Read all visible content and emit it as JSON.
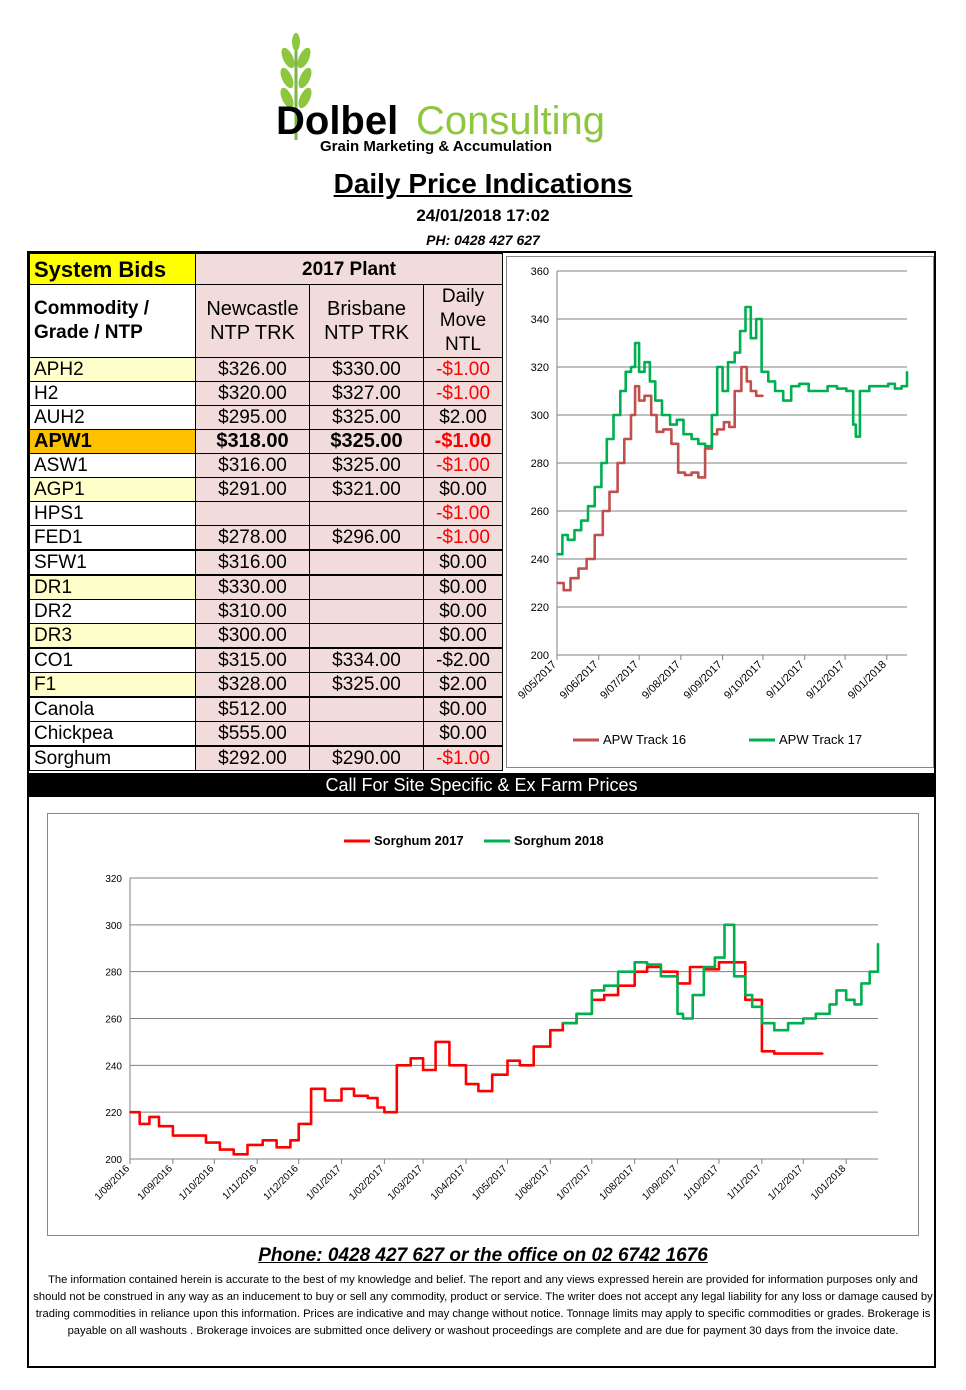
{
  "logo": {
    "brand_left": "Dolbel",
    "brand_right": "Consulting",
    "tagline": "Grain Marketing & Accumulation"
  },
  "header": {
    "title": "Daily Price Indications",
    "datetime": "24/01/2018 17:02",
    "phone": "PH: 0428 427 627"
  },
  "table": {
    "title": "System Bids",
    "plant": "2017 Plant",
    "col_commodity": "Commodity / Grade / NTP",
    "col_newcastle": "Newcastle NTP TRK",
    "col_brisbane": "Brisbane NTP TRK",
    "col_move": "Daily Move NTL",
    "rows": [
      {
        "name": "APH2",
        "newcastle": "$326.00",
        "brisbane": "$330.00",
        "move": "-$1.00"
      },
      {
        "name": "H2",
        "newcastle": "$320.00",
        "brisbane": "$327.00",
        "move": "-$1.00"
      },
      {
        "name": "AUH2",
        "newcastle": "$295.00",
        "brisbane": "$325.00",
        "move": "$2.00"
      },
      {
        "name": "APW1",
        "newcastle": "$318.00",
        "brisbane": "$325.00",
        "move": "-$1.00"
      },
      {
        "name": "ASW1",
        "newcastle": "$316.00",
        "brisbane": "$325.00",
        "move": "-$1.00"
      },
      {
        "name": "AGP1",
        "newcastle": "$291.00",
        "brisbane": "$321.00",
        "move": "$0.00"
      },
      {
        "name": "HPS1",
        "newcastle": "",
        "brisbane": "",
        "move": "-$1.00"
      },
      {
        "name": "FED1",
        "newcastle": "$278.00",
        "brisbane": "$296.00",
        "move": "-$1.00"
      },
      {
        "name": "SFW1",
        "newcastle": "$316.00",
        "brisbane": "",
        "move": "$0.00"
      },
      {
        "name": "DR1",
        "newcastle": "$330.00",
        "brisbane": "",
        "move": "$0.00"
      },
      {
        "name": "DR2",
        "newcastle": "$310.00",
        "brisbane": "",
        "move": "$0.00"
      },
      {
        "name": "DR3",
        "newcastle": "$300.00",
        "brisbane": "",
        "move": "$0.00"
      },
      {
        "name": "CO1",
        "newcastle": "$315.00",
        "brisbane": "$334.00",
        "move": "-$2.00"
      },
      {
        "name": "F1",
        "newcastle": "$328.00",
        "brisbane": "$325.00",
        "move": "$2.00"
      },
      {
        "name": "Canola",
        "newcastle": "$512.00",
        "brisbane": "",
        "move": "$0.00"
      },
      {
        "name": "Chickpea",
        "newcastle": "$555.00",
        "brisbane": "",
        "move": "$0.00"
      },
      {
        "name": "Sorghum",
        "newcastle": "$292.00",
        "brisbane": "$290.00",
        "move": "-$1.00"
      }
    ]
  },
  "banner": "Call For Site Specific & Ex Farm Prices",
  "footer": {
    "phone": "Phone: 0428 427 627 or the office on 02 6742 1676",
    "disclaimer": "The information contained herein is accurate to the best of my knowledge and belief.  The report and any views expressed herein are provided for information purposes only and should not be construed in any way as an inducement to buy or sell any commodity, product or service. The writer does not accept any legal liability for any loss or damage caused by trading commodities in reliance upon this information. Prices are indicative and may change without notice. Tonnage limits may apply to specific commodities or grades.  Brokerage is payable on all washouts . Brokerage invoices are submitted once delivery or washout proceedings are complete and are due for payment 30 days from the invoice date."
  },
  "colors": {
    "red_line": "#c0504d",
    "green_line": "#00b050",
    "sorghum_red": "#ff0000",
    "apw_highlight": "#ffc000",
    "pink_cell": "#f2dcdb",
    "yellow_cell": "#ffffcc"
  },
  "chart_data": [
    {
      "type": "line",
      "title": "",
      "ylim": [
        200,
        360
      ],
      "yticks": [
        200,
        220,
        240,
        260,
        280,
        300,
        320,
        340,
        360
      ],
      "xticks": [
        "9/05/2017",
        "9/06/2017",
        "9/07/2017",
        "9/08/2017",
        "9/09/2017",
        "9/10/2017",
        "9/11/2017",
        "9/12/2017",
        "9/01/2018"
      ],
      "xlim": [
        "2017-05-09",
        "2018-01-24"
      ],
      "grid": true,
      "legend": "bottom",
      "series": [
        {
          "name": "APW Track 16",
          "color": "#c0504d",
          "x": [
            "2017-05-09",
            "2017-05-14",
            "2017-05-19",
            "2017-05-25",
            "2017-05-31",
            "2017-06-06",
            "2017-06-12",
            "2017-06-17",
            "2017-06-23",
            "2017-06-28",
            "2017-07-03",
            "2017-07-06",
            "2017-07-09",
            "2017-07-13",
            "2017-07-18",
            "2017-07-22",
            "2017-07-27",
            "2017-08-02",
            "2017-08-07",
            "2017-08-12",
            "2017-08-17",
            "2017-08-22",
            "2017-08-27",
            "2017-09-01",
            "2017-09-05",
            "2017-09-10",
            "2017-09-14",
            "2017-09-18",
            "2017-09-23",
            "2017-09-27",
            "2017-09-30",
            "2017-10-04",
            "2017-10-09"
          ],
          "values": [
            230,
            227,
            232,
            236,
            240,
            250,
            260,
            268,
            280,
            290,
            300,
            312,
            306,
            308,
            300,
            293,
            294,
            288,
            276,
            275,
            276,
            274,
            286,
            292,
            294,
            297,
            295,
            310,
            320,
            314,
            310,
            308,
            308
          ]
        },
        {
          "name": "APW Track 17",
          "color": "#00b050",
          "x": [
            "2017-05-09",
            "2017-05-13",
            "2017-05-17",
            "2017-05-22",
            "2017-05-27",
            "2017-06-01",
            "2017-06-06",
            "2017-06-11",
            "2017-06-15",
            "2017-06-20",
            "2017-06-25",
            "2017-06-29",
            "2017-07-03",
            "2017-07-06",
            "2017-07-09",
            "2017-07-13",
            "2017-07-17",
            "2017-07-21",
            "2017-07-26",
            "2017-08-01",
            "2017-08-06",
            "2017-08-11",
            "2017-08-17",
            "2017-08-22",
            "2017-08-27",
            "2017-09-01",
            "2017-09-05",
            "2017-09-09",
            "2017-09-13",
            "2017-09-18",
            "2017-09-22",
            "2017-09-26",
            "2017-09-30",
            "2017-10-04",
            "2017-10-08",
            "2017-10-13",
            "2017-10-18",
            "2017-10-24",
            "2017-10-30",
            "2017-11-05",
            "2017-11-12",
            "2017-11-19",
            "2017-11-26",
            "2017-12-03",
            "2017-12-10",
            "2017-12-15",
            "2017-12-17",
            "2017-12-20",
            "2017-12-27",
            "2018-01-03",
            "2018-01-10",
            "2018-01-15",
            "2018-01-20",
            "2018-01-24"
          ],
          "values": [
            242,
            250,
            248,
            252,
            256,
            262,
            270,
            280,
            290,
            300,
            310,
            318,
            320,
            330,
            318,
            322,
            314,
            306,
            300,
            296,
            298,
            292,
            290,
            288,
            287,
            300,
            320,
            310,
            322,
            326,
            335,
            345,
            332,
            340,
            318,
            314,
            310,
            306,
            312,
            313,
            310,
            310,
            312,
            311,
            310,
            296,
            291,
            310,
            312,
            312,
            313,
            311,
            312,
            318
          ]
        }
      ]
    },
    {
      "type": "line",
      "title": "",
      "ylim": [
        200,
        320
      ],
      "yticks": [
        200,
        220,
        240,
        260,
        280,
        300,
        320
      ],
      "xticks": [
        "1/08/2016",
        "1/09/2016",
        "1/10/2016",
        "1/11/2016",
        "1/12/2016",
        "1/01/2017",
        "1/02/2017",
        "1/03/2017",
        "1/04/2017",
        "1/05/2017",
        "1/06/2017",
        "1/07/2017",
        "1/08/2017",
        "1/09/2017",
        "1/10/2017",
        "1/11/2017",
        "1/12/2017",
        "1/01/2018"
      ],
      "xlim": [
        "2016-08-01",
        "2018-01-24"
      ],
      "grid": true,
      "legend": "top",
      "series": [
        {
          "name": "Sorghum 2017",
          "color": "#ff0000",
          "x": [
            "2016-08-01",
            "2016-08-08",
            "2016-08-15",
            "2016-08-22",
            "2016-09-01",
            "2016-09-15",
            "2016-09-25",
            "2016-10-05",
            "2016-10-15",
            "2016-10-25",
            "2016-11-05",
            "2016-11-15",
            "2016-11-25",
            "2016-12-01",
            "2016-12-10",
            "2016-12-20",
            "2017-01-01",
            "2017-01-10",
            "2017-01-20",
            "2017-01-27",
            "2017-02-01",
            "2017-02-10",
            "2017-02-20",
            "2017-03-01",
            "2017-03-10",
            "2017-03-20",
            "2017-04-01",
            "2017-04-10",
            "2017-04-20",
            "2017-05-01",
            "2017-05-10",
            "2017-05-20",
            "2017-06-01",
            "2017-06-10",
            "2017-06-20",
            "2017-07-01",
            "2017-07-10",
            "2017-07-20",
            "2017-08-01",
            "2017-08-10",
            "2017-08-20",
            "2017-09-01",
            "2017-09-10",
            "2017-09-20",
            "2017-10-01",
            "2017-10-10",
            "2017-10-20",
            "2017-11-01",
            "2017-11-10",
            "2017-11-20",
            "2017-12-01",
            "2017-12-15"
          ],
          "values": [
            220,
            215,
            218,
            214,
            210,
            210,
            207,
            204,
            202,
            206,
            208,
            205,
            208,
            215,
            230,
            225,
            230,
            227,
            226,
            222,
            220,
            240,
            243,
            238,
            250,
            240,
            232,
            229,
            236,
            242,
            240,
            248,
            255,
            258,
            262,
            268,
            270,
            274,
            280,
            282,
            280,
            275,
            282,
            281,
            284,
            284,
            268,
            246,
            245,
            245,
            245,
            245
          ]
        },
        {
          "name": "Sorghum 2018",
          "color": "#00b050",
          "x": [
            "2017-06-10",
            "2017-06-20",
            "2017-07-01",
            "2017-07-10",
            "2017-07-20",
            "2017-08-01",
            "2017-08-10",
            "2017-08-20",
            "2017-09-01",
            "2017-09-05",
            "2017-09-12",
            "2017-09-20",
            "2017-09-28",
            "2017-10-05",
            "2017-10-12",
            "2017-10-20",
            "2017-10-25",
            "2017-11-01",
            "2017-11-10",
            "2017-11-20",
            "2017-12-01",
            "2017-12-10",
            "2017-12-20",
            "2017-12-25",
            "2018-01-01",
            "2018-01-07",
            "2018-01-12",
            "2018-01-18",
            "2018-01-24"
          ],
          "values": [
            258,
            262,
            272,
            274,
            280,
            284,
            283,
            278,
            262,
            260,
            270,
            282,
            286,
            300,
            278,
            270,
            265,
            258,
            255,
            258,
            260,
            262,
            266,
            272,
            268,
            266,
            275,
            280,
            292
          ]
        }
      ]
    }
  ]
}
